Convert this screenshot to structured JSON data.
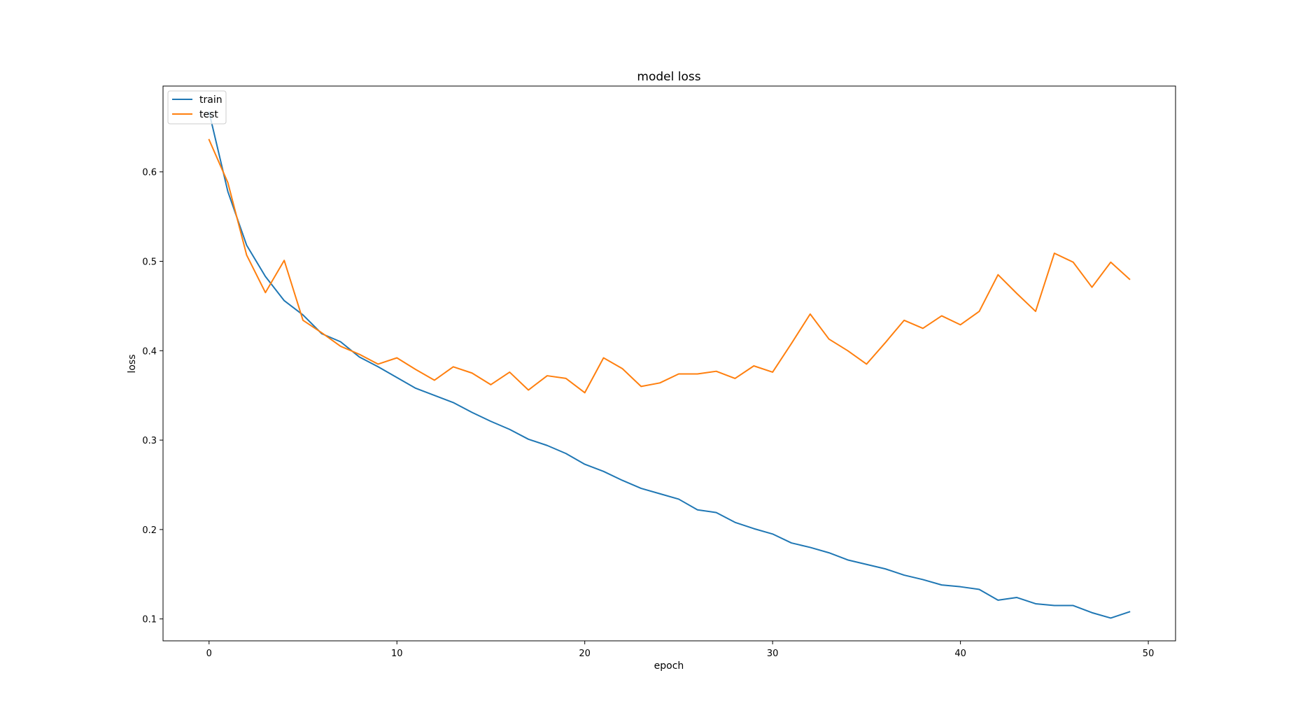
{
  "chart_data": {
    "type": "line",
    "title": "model loss",
    "xlabel": "epoch",
    "ylabel": "loss",
    "xlim": [
      -2.45,
      51.45
    ],
    "ylim": [
      0.0755,
      0.696
    ],
    "xticks": [
      0,
      10,
      20,
      30,
      40,
      50
    ],
    "yticks": [
      0.1,
      0.2,
      0.3,
      0.4,
      0.5,
      0.6
    ],
    "grid": false,
    "legend": "top-left",
    "x": [
      0,
      1,
      2,
      3,
      4,
      5,
      6,
      7,
      8,
      9,
      10,
      11,
      12,
      13,
      14,
      15,
      16,
      17,
      18,
      19,
      20,
      21,
      22,
      23,
      24,
      25,
      26,
      27,
      28,
      29,
      30,
      31,
      32,
      33,
      34,
      35,
      36,
      37,
      38,
      39,
      40,
      41,
      42,
      43,
      44,
      45,
      46,
      47,
      48,
      49
    ],
    "series": [
      {
        "name": "train",
        "color": "#1f77b4",
        "values": [
          0.667,
          0.578,
          0.518,
          0.483,
          0.456,
          0.44,
          0.419,
          0.41,
          0.393,
          0.382,
          0.37,
          0.358,
          0.35,
          0.342,
          0.331,
          0.321,
          0.312,
          0.301,
          0.294,
          0.285,
          0.273,
          0.265,
          0.255,
          0.246,
          0.24,
          0.234,
          0.222,
          0.219,
          0.208,
          0.201,
          0.195,
          0.185,
          0.18,
          0.174,
          0.166,
          0.161,
          0.156,
          0.149,
          0.144,
          0.138,
          0.136,
          0.133,
          0.121,
          0.124,
          0.117,
          0.115,
          0.115,
          0.107,
          0.101,
          0.108
        ]
      },
      {
        "name": "test",
        "color": "#ff7f0e",
        "values": [
          0.636,
          0.588,
          0.507,
          0.465,
          0.501,
          0.434,
          0.42,
          0.405,
          0.396,
          0.385,
          0.392,
          0.379,
          0.367,
          0.382,
          0.375,
          0.362,
          0.376,
          0.356,
          0.372,
          0.369,
          0.353,
          0.392,
          0.38,
          0.36,
          0.364,
          0.374,
          0.374,
          0.377,
          0.369,
          0.383,
          0.376,
          0.408,
          0.441,
          0.413,
          0.4,
          0.385,
          0.409,
          0.434,
          0.425,
          0.439,
          0.429,
          0.444,
          0.485,
          0.464,
          0.444,
          0.509,
          0.499,
          0.471,
          0.499,
          0.48
        ]
      }
    ]
  }
}
